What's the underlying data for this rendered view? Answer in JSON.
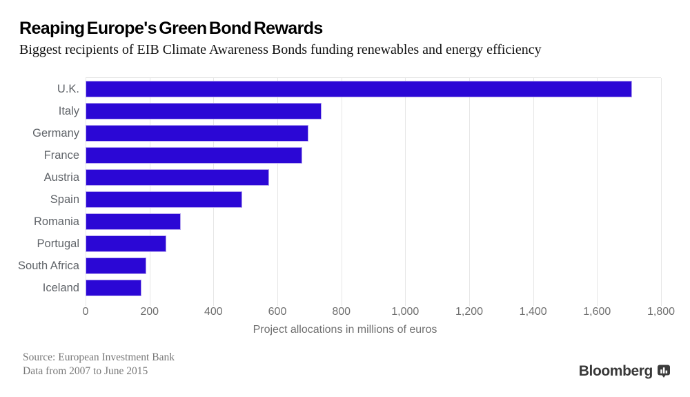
{
  "chart_data": {
    "type": "bar",
    "orientation": "horizontal",
    "title": "Reaping Europe's Green Bond Rewards",
    "subtitle": "Biggest recipients of EIB Climate Awareness Bonds funding renewables and energy efficiency",
    "categories": [
      "U.K.",
      "Italy",
      "Germany",
      "France",
      "Austria",
      "Spain",
      "Romania",
      "Portugal",
      "South Africa",
      "Iceland"
    ],
    "values": [
      1710,
      737,
      697,
      678,
      573,
      490,
      298,
      252,
      189,
      175
    ],
    "xlabel": "Project allocations in millions of euros",
    "xlim": [
      0,
      1800
    ],
    "xticks": [
      0,
      200,
      400,
      600,
      800,
      1000,
      1200,
      1400,
      1600,
      1800
    ],
    "xtick_labels": [
      "0",
      "200",
      "400",
      "600",
      "800",
      "1,000",
      "1,200",
      "1,400",
      "1,600",
      "1,800"
    ],
    "bar_color": "#2b07d5",
    "bar_border_color": "#b4a4ef",
    "grid": true,
    "legend": "none"
  },
  "footer": {
    "source_line1": "Source: European Investment Bank",
    "source_line2": "Data from 2007 to June 2015",
    "brand": "Bloomberg",
    "brand_icon": "bar-chart-badge-icon"
  }
}
